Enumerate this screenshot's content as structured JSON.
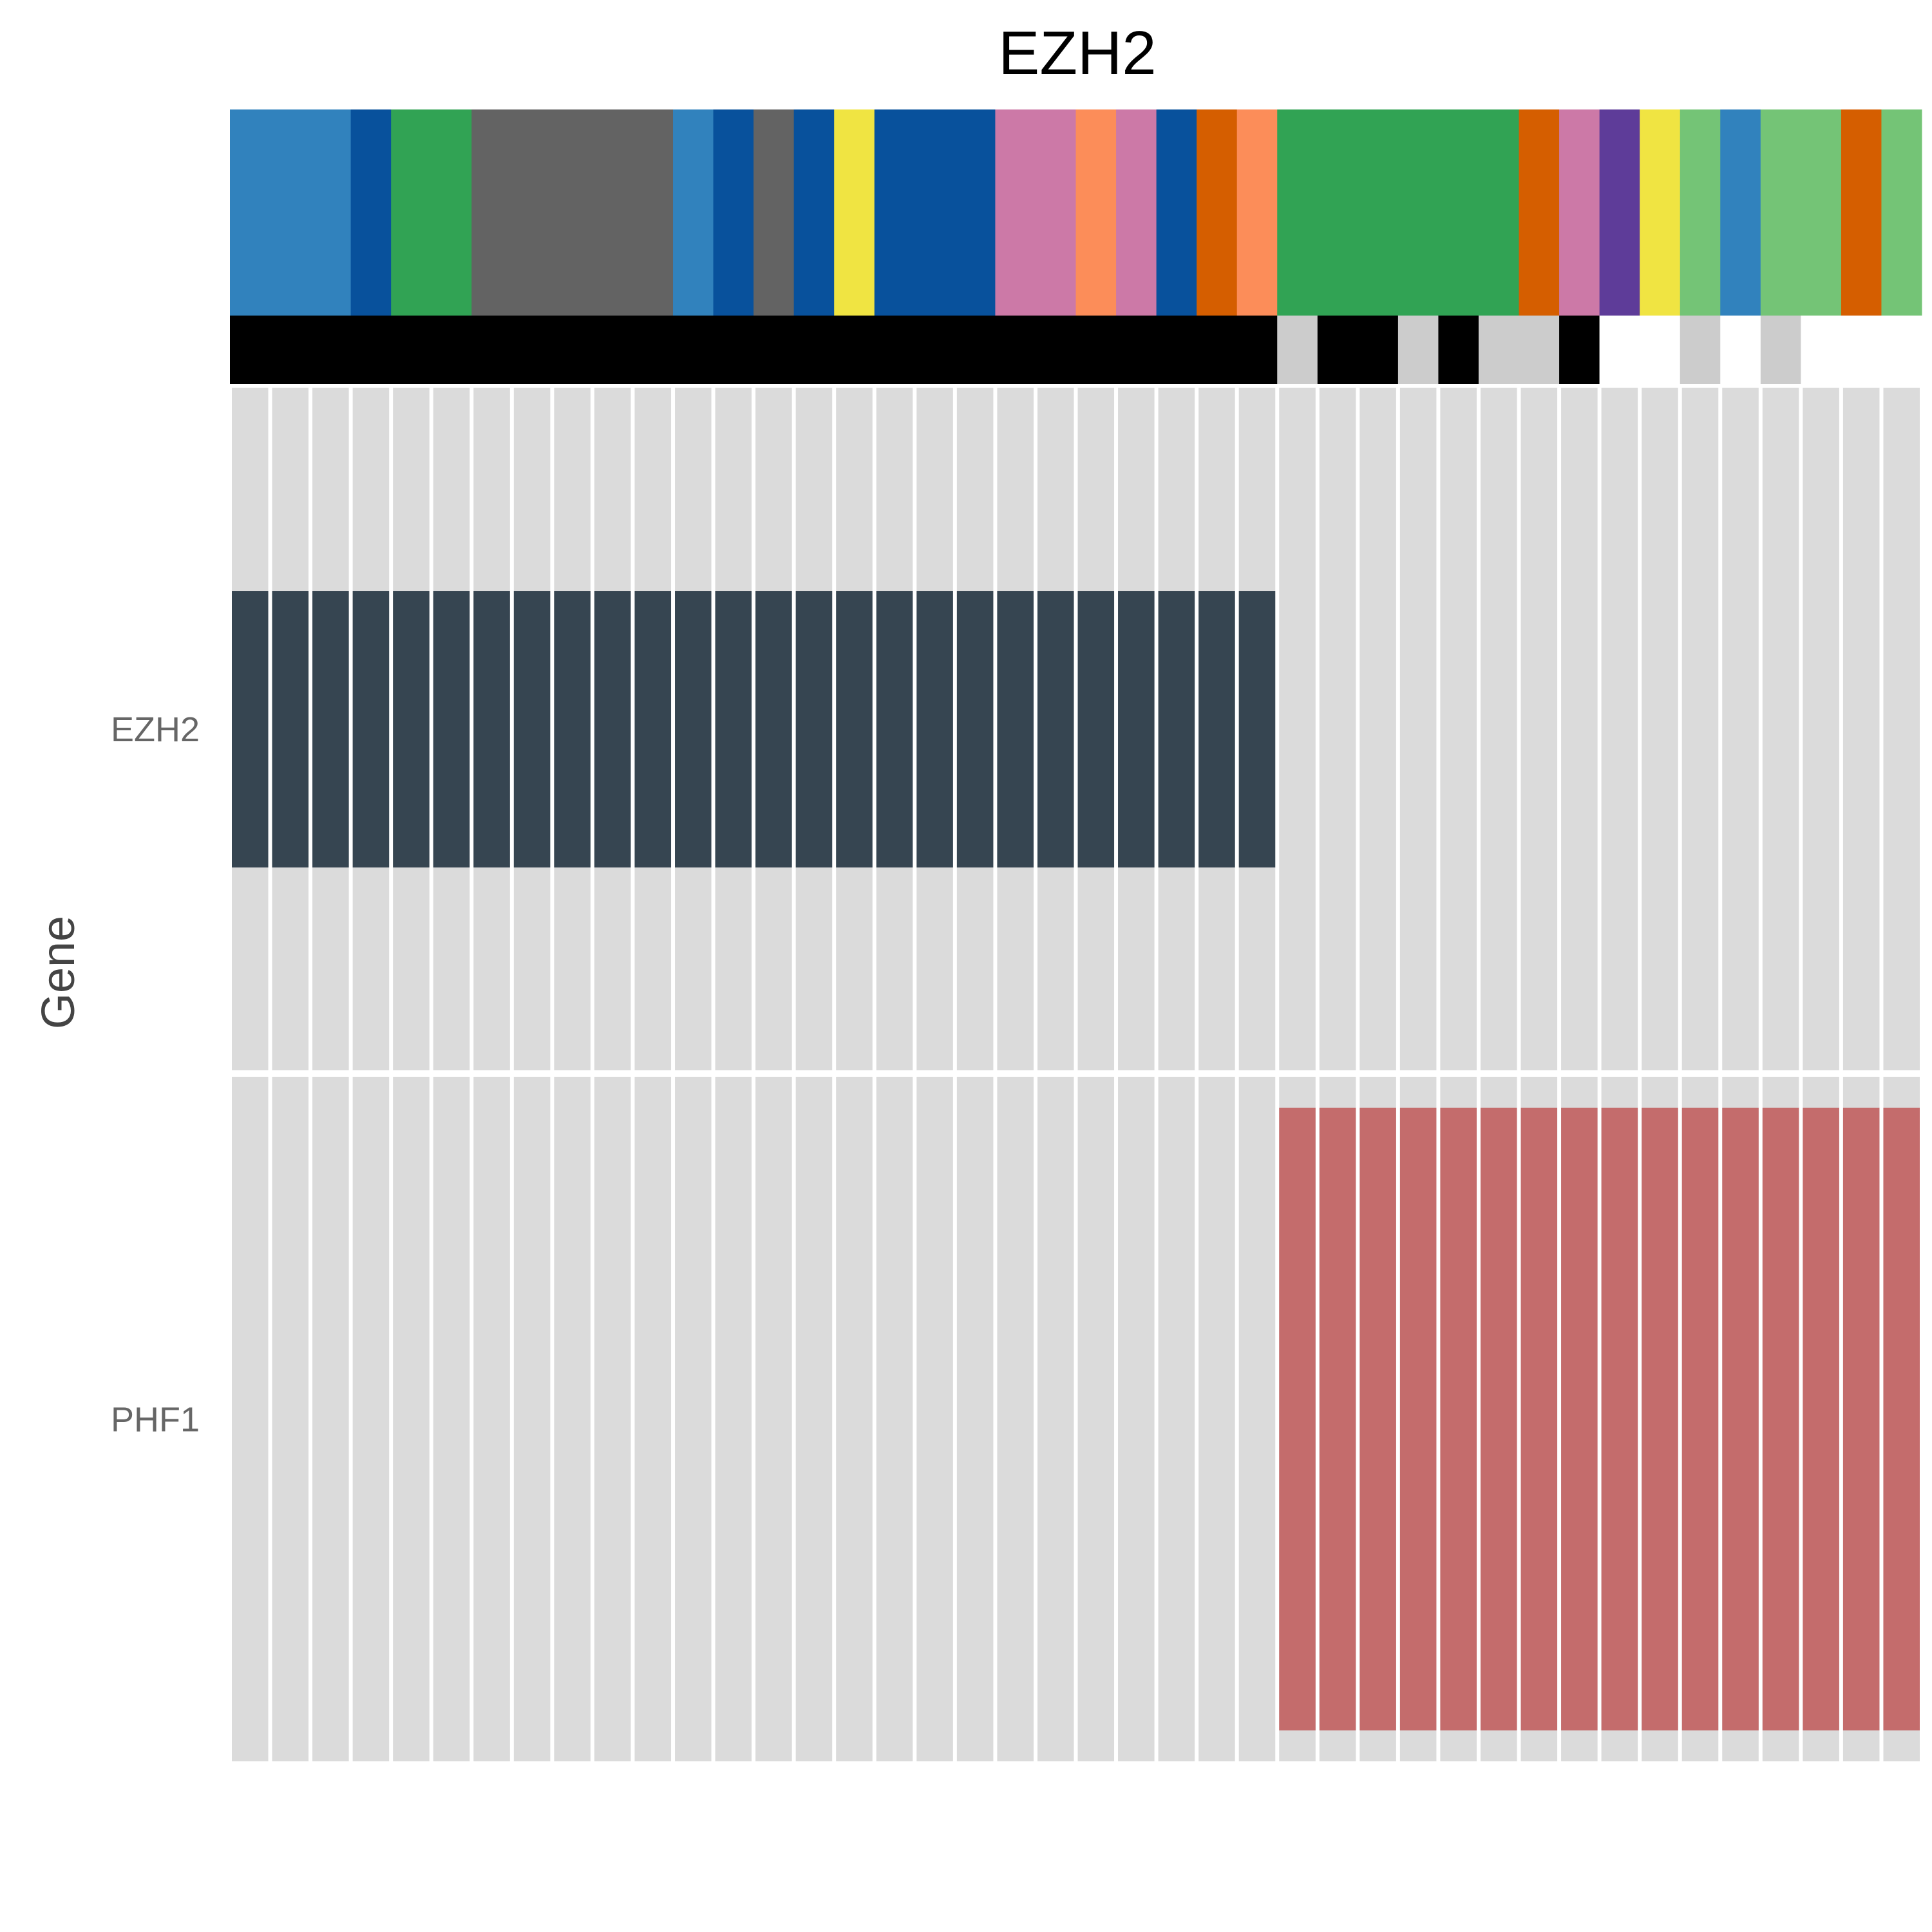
{
  "chart_data": {
    "type": "heatmap",
    "title": "EZH2",
    "ylabel": "Gene",
    "n_samples": 42,
    "genes": [
      "EZH2",
      "PHF1"
    ],
    "colors": {
      "background": "#dbdbdb",
      "EZH2": "#364551",
      "PHF1": "#c46c6c"
    },
    "altered_samples": {
      "EZH2": {
        "from": 1,
        "to": 26
      },
      "PHF1": {
        "from": 27,
        "to": 42
      }
    },
    "annotation_tracks": [
      {
        "name": "track1",
        "segments": [
          {
            "n": 3,
            "color": "#3182bd"
          },
          {
            "n": 1,
            "color": "#08519c"
          },
          {
            "n": 2,
            "color": "#31a354"
          },
          {
            "n": 5,
            "color": "#636363"
          },
          {
            "n": 1,
            "color": "#3182bd"
          },
          {
            "n": 1,
            "color": "#08519c"
          },
          {
            "n": 1,
            "color": "#636363"
          },
          {
            "n": 1,
            "color": "#08519c"
          },
          {
            "n": 1,
            "color": "#f0e442"
          },
          {
            "n": 3,
            "color": "#08519c"
          },
          {
            "n": 2,
            "color": "#cc79a7"
          },
          {
            "n": 1,
            "color": "#fc8d59"
          },
          {
            "n": 1,
            "color": "#cc79a7"
          },
          {
            "n": 1,
            "color": "#08519c"
          },
          {
            "n": 1,
            "color": "#d55e00"
          },
          {
            "n": 1,
            "color": "#fc8d59"
          },
          {
            "n": 6,
            "color": "#31a354"
          },
          {
            "n": 1,
            "color": "#d55e00"
          },
          {
            "n": 1,
            "color": "#cc79a7"
          },
          {
            "n": 1,
            "color": "#5e3c99"
          },
          {
            "n": 1,
            "color": "#f0e442"
          },
          {
            "n": 1,
            "color": "#74c476"
          },
          {
            "n": 1,
            "color": "#3182bd"
          },
          {
            "n": 2,
            "color": "#74c476"
          },
          {
            "n": 1,
            "color": "#d55e00"
          },
          {
            "n": 1,
            "color": "#74c476"
          }
        ]
      },
      {
        "name": "track2",
        "segments": [
          {
            "n": 26,
            "color": "#000000"
          },
          {
            "n": 1,
            "color": "#cccccc"
          },
          {
            "n": 2,
            "color": "#000000"
          },
          {
            "n": 1,
            "color": "#cccccc"
          },
          {
            "n": 1,
            "color": "#000000"
          },
          {
            "n": 2,
            "color": "#cccccc"
          },
          {
            "n": 1,
            "color": "#000000"
          },
          {
            "n": 2,
            "color": "#ffffff"
          },
          {
            "n": 1,
            "color": "#cccccc"
          },
          {
            "n": 1,
            "color": "#ffffff"
          },
          {
            "n": 1,
            "color": "#cccccc"
          },
          {
            "n": 3,
            "color": "#ffffff"
          }
        ]
      }
    ]
  }
}
